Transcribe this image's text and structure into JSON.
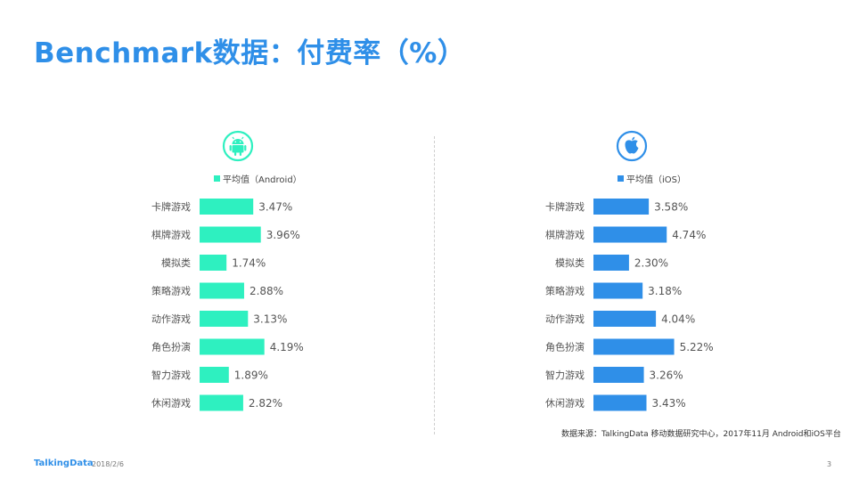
{
  "title": "Benchmark数据：付费率（%）",
  "source": "数据来源：TalkingData 移动数据研究中心，2017年11月 Android和iOS平台",
  "footer": {
    "brand": "TalkingData",
    "date": "2018/2/6",
    "page": "3"
  },
  "icons": {
    "left": "android-icon",
    "right": "apple-icon"
  },
  "colors": {
    "title": "#2f8fe8",
    "android": "#2ef0c0",
    "ios": "#2f8fe8"
  },
  "chart_data": [
    {
      "type": "bar",
      "orientation": "horizontal",
      "legend": "平均值（Android）",
      "categories": [
        "卡牌游戏",
        "棋牌游戏",
        "模拟类",
        "策略游戏",
        "动作游戏",
        "角色扮演",
        "智力游戏",
        "休闲游戏"
      ],
      "values": [
        3.47,
        3.96,
        1.74,
        2.88,
        3.13,
        4.19,
        1.89,
        2.82
      ],
      "labels": [
        "3.47%",
        "3.96%",
        "1.74%",
        "2.88%",
        "3.13%",
        "4.19%",
        "1.89%",
        "2.82%"
      ],
      "color": "#2ef0c0"
    },
    {
      "type": "bar",
      "orientation": "horizontal",
      "legend": "平均值（iOS）",
      "categories": [
        "卡牌游戏",
        "棋牌游戏",
        "模拟类",
        "策略游戏",
        "动作游戏",
        "角色扮演",
        "智力游戏",
        "休闲游戏"
      ],
      "values": [
        3.58,
        4.74,
        2.3,
        3.18,
        4.04,
        5.22,
        3.26,
        3.43
      ],
      "labels": [
        "3.58%",
        "4.74%",
        "2.30%",
        "3.18%",
        "4.04%",
        "5.22%",
        "3.26%",
        "3.43%"
      ],
      "color": "#2f8fe8"
    }
  ]
}
